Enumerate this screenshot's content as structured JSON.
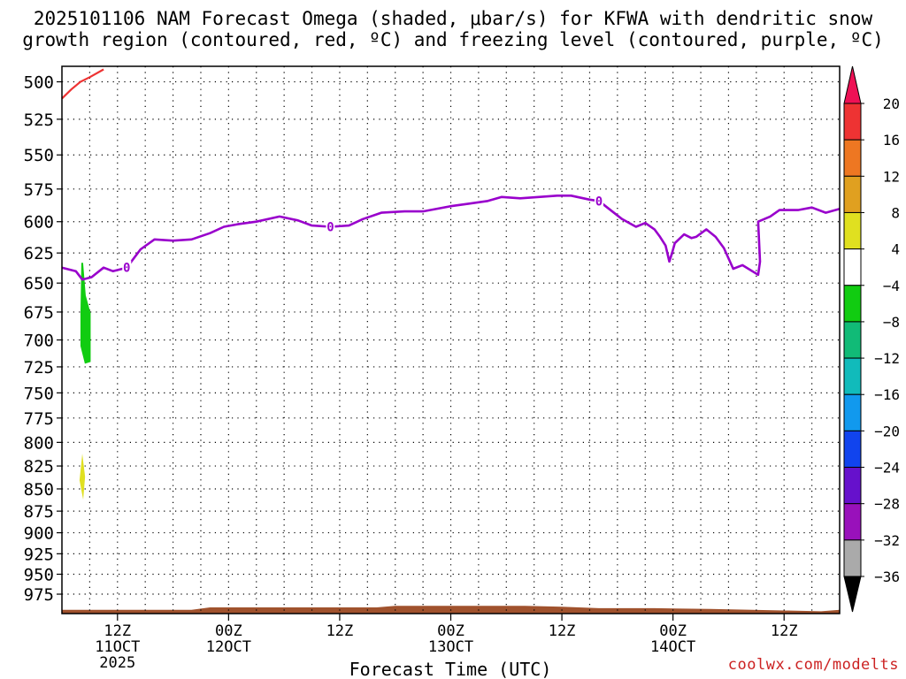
{
  "title_line1": "2025101106 NAM Forecast Omega (shaded, μbar/s) for KFWA with dendritic snow",
  "title_line2": "growth region (contoured, red, ºC) and freezing level (contoured, purple, ºC)",
  "credit": "coolwx.com/modelts",
  "chart_data": {
    "type": "time-height",
    "title": "2025101106 NAM Forecast Omega (shaded, μbar/s) for KFWA with dendritic snow growth region (contoured, red, ºC) and freezing level (contoured, purple, ºC)",
    "xlabel": "Forecast Time (UTC)",
    "ylabel": "",
    "x_range_hours": [
      6,
      90
    ],
    "y_range_hpa": [
      490,
      1000
    ],
    "y_scale": "pressure (log)",
    "grid": true,
    "y_ticks": [
      500,
      525,
      550,
      575,
      600,
      625,
      650,
      675,
      700,
      725,
      750,
      775,
      800,
      825,
      850,
      875,
      900,
      925,
      950,
      975
    ],
    "x_ticks": [
      {
        "hour": 12,
        "lines": [
          "12Z",
          "11OCT",
          "2025"
        ]
      },
      {
        "hour": 24,
        "lines": [
          "00Z",
          "12OCT"
        ]
      },
      {
        "hour": 36,
        "lines": [
          "12Z"
        ]
      },
      {
        "hour": 48,
        "lines": [
          "00Z",
          "13OCT"
        ]
      },
      {
        "hour": 60,
        "lines": [
          "12Z"
        ]
      },
      {
        "hour": 72,
        "lines": [
          "00Z",
          "14OCT"
        ]
      },
      {
        "hour": 84,
        "lines": [
          "12Z"
        ]
      }
    ],
    "colorbar": {
      "labels": [
        "20",
        "16",
        "12",
        "8",
        "4",
        "−4",
        "−8",
        "−12",
        "−16",
        "−20",
        "−24",
        "−28",
        "−32",
        "−36"
      ],
      "colors": [
        "#ee1155",
        "#ee3333",
        "#ee7722",
        "#e0a020",
        "#e0e020",
        "#ffffff",
        "#11cc11",
        "#11bb77",
        "#11bbbb",
        "#1199ee",
        "#1144ee",
        "#6611cc",
        "#9911bb",
        "#aaaaaa",
        "#000000"
      ]
    },
    "freezing_level": {
      "label": "0",
      "color": "#9900cc",
      "points_hour_hpa": [
        [
          6,
          637
        ],
        [
          7.5,
          640
        ],
        [
          8.2,
          647
        ],
        [
          9.2,
          645
        ],
        [
          10.5,
          637
        ],
        [
          11.5,
          640
        ],
        [
          13,
          637
        ],
        [
          14.5,
          622
        ],
        [
          16,
          614
        ],
        [
          18,
          615
        ],
        [
          20,
          614
        ],
        [
          22,
          609
        ],
        [
          23.5,
          604
        ],
        [
          25,
          602
        ],
        [
          27,
          600
        ],
        [
          29.5,
          596
        ],
        [
          31.5,
          599
        ],
        [
          33,
          603
        ],
        [
          35,
          604
        ],
        [
          37,
          603
        ],
        [
          38.5,
          598
        ],
        [
          40.5,
          593
        ],
        [
          43,
          592
        ],
        [
          45,
          592
        ],
        [
          48,
          588
        ],
        [
          50,
          586
        ],
        [
          52,
          584
        ],
        [
          53.5,
          581
        ],
        [
          55.5,
          582
        ],
        [
          57.5,
          581
        ],
        [
          59.5,
          580
        ],
        [
          61,
          580
        ],
        [
          63,
          583
        ],
        [
          64,
          584
        ],
        [
          66.5,
          598
        ],
        [
          68,
          604
        ],
        [
          69,
          601
        ],
        [
          70,
          606
        ],
        [
          70.6,
          612
        ],
        [
          71.2,
          619
        ],
        [
          71.6,
          632
        ],
        [
          71.9,
          625
        ],
        [
          72.2,
          617
        ],
        [
          73.2,
          610
        ],
        [
          74,
          613
        ],
        [
          74.5,
          612
        ],
        [
          75.6,
          606
        ],
        [
          76.6,
          612
        ],
        [
          77.5,
          621
        ],
        [
          78.5,
          638
        ],
        [
          79.5,
          635
        ],
        [
          81.2,
          643
        ],
        [
          81.4,
          632
        ],
        [
          81.2,
          600
        ],
        [
          82.5,
          596
        ],
        [
          83.5,
          591
        ],
        [
          85.5,
          591
        ],
        [
          87,
          589
        ],
        [
          88.5,
          593
        ],
        [
          90,
          590
        ]
      ],
      "labeled_at_hours": [
        13,
        35,
        64
      ]
    },
    "dendritic_snow_growth_contour": {
      "color": "#ee3333",
      "points_hour_hpa": [
        [
          6,
          511
        ],
        [
          7,
          505
        ],
        [
          8,
          500
        ],
        [
          9,
          497
        ],
        [
          10.5,
          492
        ]
      ]
    },
    "omega_shaded": [
      {
        "value_band": "-4 to -8",
        "color": "#11cc11",
        "hour_range": [
          8.0,
          9.1
        ],
        "hpa_range": [
          633,
          722
        ]
      },
      {
        "value_band": "4 to 8",
        "color": "#e0e020",
        "hour_range": [
          7.9,
          8.5
        ],
        "hpa_range": [
          812,
          862
        ]
      }
    ],
    "surface_pressure": {
      "color": "#a0522d",
      "points_hour_hpa": [
        [
          6,
          995
        ],
        [
          20,
          995
        ],
        [
          22,
          992
        ],
        [
          40,
          992
        ],
        [
          42,
          990
        ],
        [
          56,
          990
        ],
        [
          60,
          991
        ],
        [
          64,
          993
        ],
        [
          70,
          993
        ],
        [
          76,
          994
        ],
        [
          84,
          996
        ],
        [
          88,
          997
        ],
        [
          90,
          995
        ]
      ]
    }
  }
}
